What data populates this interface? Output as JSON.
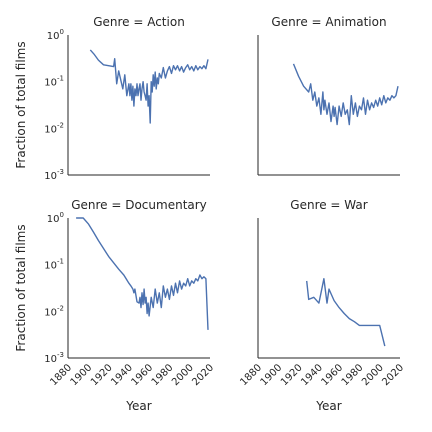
{
  "chart_data": {
    "type": "line",
    "facet_variable": "Genre",
    "y_scale": "log",
    "ylim": [
      0.001,
      1
    ],
    "xlim": [
      1880,
      2020
    ],
    "x_ticks": [
      1880,
      1900,
      1920,
      1940,
      1960,
      1980,
      2000,
      2020
    ],
    "y_ticks": [
      {
        "value": 0.001,
        "base": "10",
        "exp": "-3"
      },
      {
        "value": 0.01,
        "base": "10",
        "exp": "-2"
      },
      {
        "value": 0.1,
        "base": "10",
        "exp": "-1"
      },
      {
        "value": 1,
        "base": "10",
        "exp": "0"
      }
    ],
    "ylabel": "Fraction of total films",
    "xlabel": "Year",
    "line_color": "#4c72b0",
    "panels": [
      {
        "title": "Genre = Action",
        "x": [
          1902,
          1906,
          1910,
          1915,
          1920,
          1925,
          1926,
          1928,
          1930,
          1932,
          1934,
          1936,
          1938,
          1940,
          1941,
          1942,
          1943,
          1944,
          1945,
          1946,
          1947,
          1948,
          1949,
          1950,
          1951,
          1952,
          1953,
          1954,
          1955,
          1956,
          1957,
          1958,
          1959,
          1960,
          1961,
          1962,
          1963,
          1964,
          1965,
          1966,
          1967,
          1968,
          1969,
          1970,
          1972,
          1974,
          1976,
          1978,
          1980,
          1982,
          1984,
          1986,
          1988,
          1990,
          1992,
          1994,
          1996,
          1998,
          2000,
          2002,
          2004,
          2006,
          2008,
          2010,
          2012,
          2014,
          2016,
          2018
        ],
        "y": [
          0.48,
          0.38,
          0.29,
          0.23,
          0.22,
          0.21,
          0.31,
          0.09,
          0.17,
          0.11,
          0.07,
          0.14,
          0.05,
          0.09,
          0.05,
          0.09,
          0.04,
          0.08,
          0.03,
          0.07,
          0.05,
          0.09,
          0.05,
          0.07,
          0.09,
          0.04,
          0.07,
          0.1,
          0.06,
          0.05,
          0.04,
          0.09,
          0.03,
          0.05,
          0.013,
          0.1,
          0.06,
          0.14,
          0.08,
          0.16,
          0.07,
          0.12,
          0.09,
          0.15,
          0.12,
          0.2,
          0.12,
          0.17,
          0.21,
          0.15,
          0.22,
          0.18,
          0.22,
          0.17,
          0.21,
          0.16,
          0.2,
          0.23,
          0.18,
          0.21,
          0.17,
          0.22,
          0.18,
          0.21,
          0.19,
          0.22,
          0.19,
          0.3
        ]
      },
      {
        "title": "Genre = Animation",
        "x": [
          1915,
          1920,
          1925,
          1930,
          1932,
          1934,
          1936,
          1938,
          1940,
          1942,
          1944,
          1945,
          1946,
          1948,
          1950,
          1952,
          1954,
          1955,
          1956,
          1958,
          1960,
          1962,
          1964,
          1966,
          1968,
          1970,
          1972,
          1974,
          1976,
          1978,
          1980,
          1982,
          1984,
          1986,
          1988,
          1990,
          1992,
          1994,
          1996,
          1998,
          2000,
          2002,
          2004,
          2006,
          2008,
          2010,
          2012,
          2014,
          2016,
          2018
        ],
        "y": [
          0.24,
          0.13,
          0.08,
          0.06,
          0.09,
          0.04,
          0.06,
          0.03,
          0.045,
          0.02,
          0.06,
          0.025,
          0.04,
          0.02,
          0.035,
          0.014,
          0.03,
          0.018,
          0.028,
          0.012,
          0.03,
          0.018,
          0.035,
          0.02,
          0.025,
          0.012,
          0.05,
          0.02,
          0.035,
          0.018,
          0.03,
          0.025,
          0.045,
          0.02,
          0.04,
          0.025,
          0.035,
          0.028,
          0.04,
          0.03,
          0.045,
          0.032,
          0.05,
          0.035,
          0.045,
          0.04,
          0.05,
          0.045,
          0.05,
          0.08
        ]
      },
      {
        "title": "Genre = Documentary",
        "x": [
          1888,
          1895,
          1900,
          1905,
          1910,
          1920,
          1930,
          1935,
          1940,
          1942,
          1944,
          1945,
          1946,
          1948,
          1950,
          1951,
          1952,
          1953,
          1954,
          1955,
          1956,
          1957,
          1958,
          1959,
          1960,
          1962,
          1964,
          1966,
          1968,
          1970,
          1972,
          1974,
          1976,
          1978,
          1980,
          1982,
          1984,
          1986,
          1988,
          1990,
          1992,
          1994,
          1996,
          1998,
          2000,
          2002,
          2004,
          2006,
          2008,
          2010,
          2012,
          2014,
          2016,
          2018
        ],
        "y": [
          1.0,
          1.0,
          0.75,
          0.5,
          0.33,
          0.15,
          0.08,
          0.06,
          0.04,
          0.035,
          0.03,
          0.025,
          0.03,
          0.016,
          0.015,
          0.02,
          0.012,
          0.025,
          0.014,
          0.03,
          0.015,
          0.02,
          0.009,
          0.015,
          0.008,
          0.02,
          0.012,
          0.03,
          0.015,
          0.025,
          0.012,
          0.035,
          0.02,
          0.03,
          0.018,
          0.035,
          0.022,
          0.04,
          0.025,
          0.045,
          0.03,
          0.04,
          0.035,
          0.05,
          0.035,
          0.045,
          0.04,
          0.05,
          0.045,
          0.06,
          0.05,
          0.055,
          0.05,
          0.004
        ]
      },
      {
        "title": "Genre = War",
        "x": [
          1928,
          1930,
          1935,
          1940,
          1945,
          1948,
          1950,
          1955,
          1960,
          1965,
          1970,
          1975,
          1980,
          1985,
          1990,
          1995,
          2000,
          2005
        ],
        "y": [
          0.045,
          0.018,
          0.02,
          0.015,
          0.05,
          0.015,
          0.03,
          0.017,
          0.012,
          0.009,
          0.007,
          0.006,
          0.005,
          0.005,
          0.005,
          0.005,
          0.005,
          0.0018
        ]
      }
    ]
  }
}
